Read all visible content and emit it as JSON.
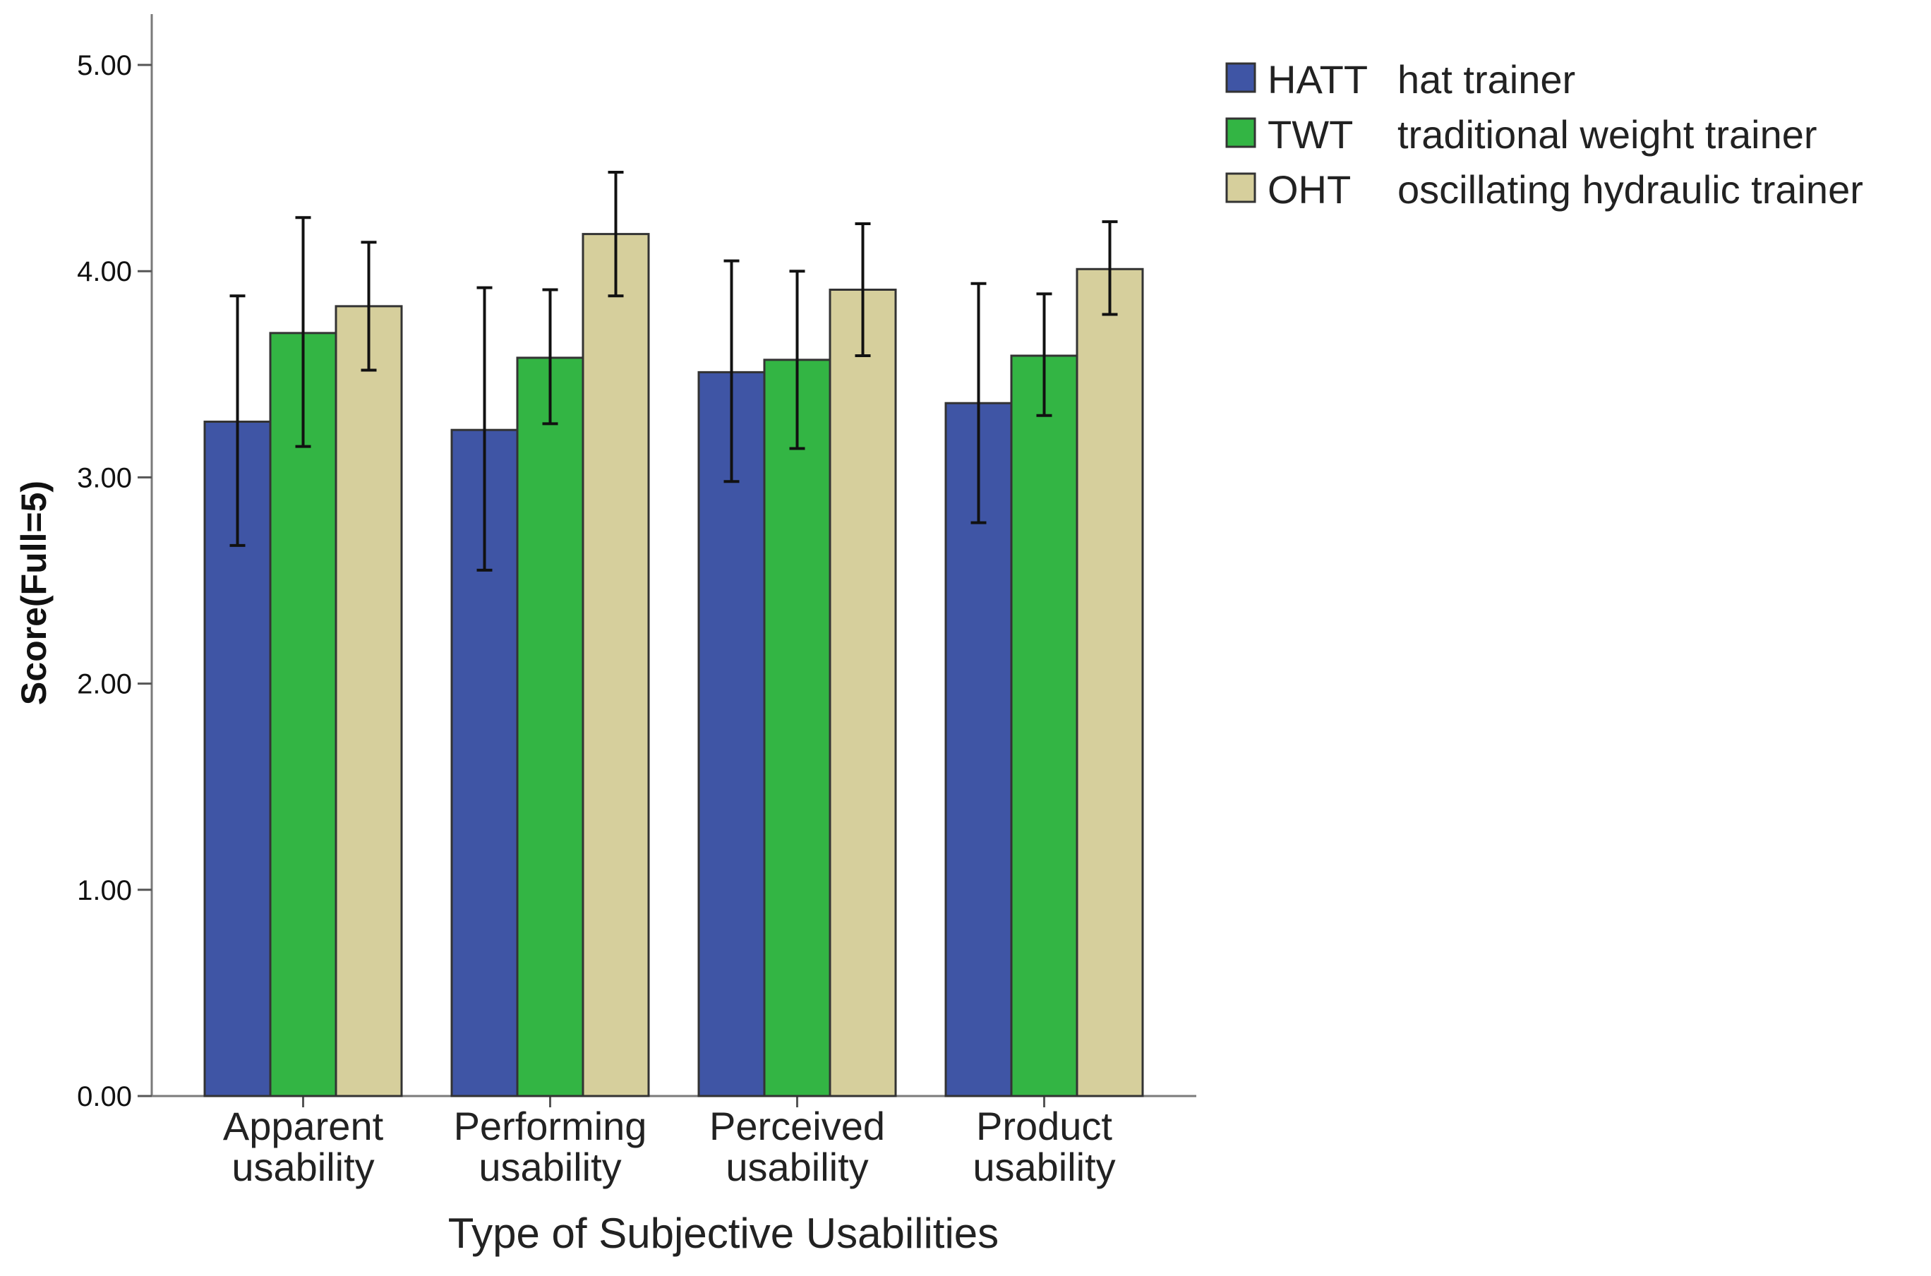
{
  "chart_data": {
    "type": "bar",
    "title": "",
    "xlabel": "Type of Subjective Usabilities",
    "ylabel": "Score(Full=5)",
    "ylim": [
      0,
      5
    ],
    "yticks": [
      "0.00",
      "1.00",
      "2.00",
      "3.00",
      "4.00",
      "5.00"
    ],
    "ytick_values": [
      0,
      1,
      2,
      3,
      4,
      5
    ],
    "categories": [
      [
        "Apparent",
        "usability"
      ],
      [
        "Performing",
        "usability"
      ],
      [
        "Perceived",
        "usability"
      ],
      [
        "Product",
        "usability"
      ]
    ],
    "series": [
      {
        "name": "HATT",
        "description": "hat trainer",
        "color": "#3f55a5",
        "values": [
          3.27,
          3.23,
          3.51,
          3.36
        ],
        "error_low": [
          2.67,
          2.55,
          2.98,
          2.78
        ],
        "error_high": [
          3.88,
          3.92,
          4.05,
          3.94
        ]
      },
      {
        "name": "TWT",
        "description": "traditional weight trainer",
        "color": "#33b544",
        "values": [
          3.7,
          3.58,
          3.57,
          3.59
        ],
        "error_low": [
          3.15,
          3.26,
          3.14,
          3.3
        ],
        "error_high": [
          4.26,
          3.91,
          4.0,
          3.89
        ]
      },
      {
        "name": "OHT",
        "description": "oscillating hydraulic trainer",
        "color": "#d6cf9c",
        "values": [
          3.83,
          4.18,
          3.91,
          4.01
        ],
        "error_low": [
          3.52,
          3.88,
          3.59,
          3.79
        ],
        "error_high": [
          4.14,
          4.48,
          4.23,
          4.24
        ]
      }
    ],
    "legend_position": "top-right",
    "grid": false
  }
}
